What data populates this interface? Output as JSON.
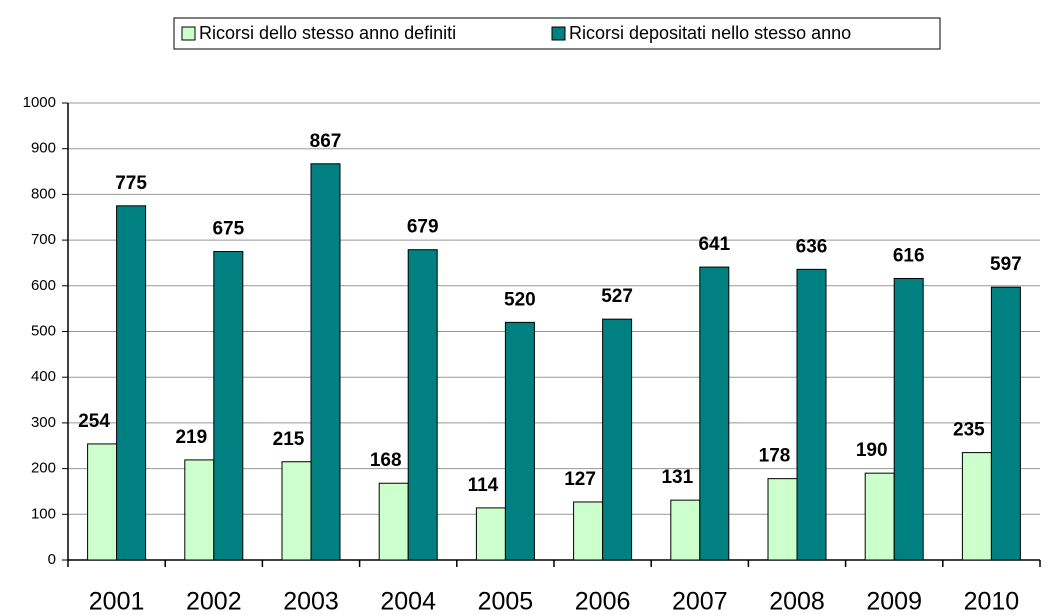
{
  "chart_data": {
    "type": "bar",
    "categories": [
      "2001",
      "2002",
      "2003",
      "2004",
      "2005",
      "2006",
      "2007",
      "2008",
      "2009",
      "2010"
    ],
    "series": [
      {
        "name": "Ricorsi dello stesso anno definiti",
        "color": "#ccffcc",
        "values": [
          254,
          219,
          215,
          168,
          114,
          127,
          131,
          178,
          190,
          235
        ]
      },
      {
        "name": "Ricorsi depositati nello stesso anno",
        "color": "#008080",
        "values": [
          775,
          675,
          867,
          679,
          520,
          527,
          641,
          636,
          616,
          597
        ]
      }
    ],
    "ylim": [
      0,
      1000
    ],
    "yticks": [
      0,
      100,
      200,
      300,
      400,
      500,
      600,
      700,
      800,
      900,
      1000
    ],
    "grid": true,
    "legend": "top"
  }
}
